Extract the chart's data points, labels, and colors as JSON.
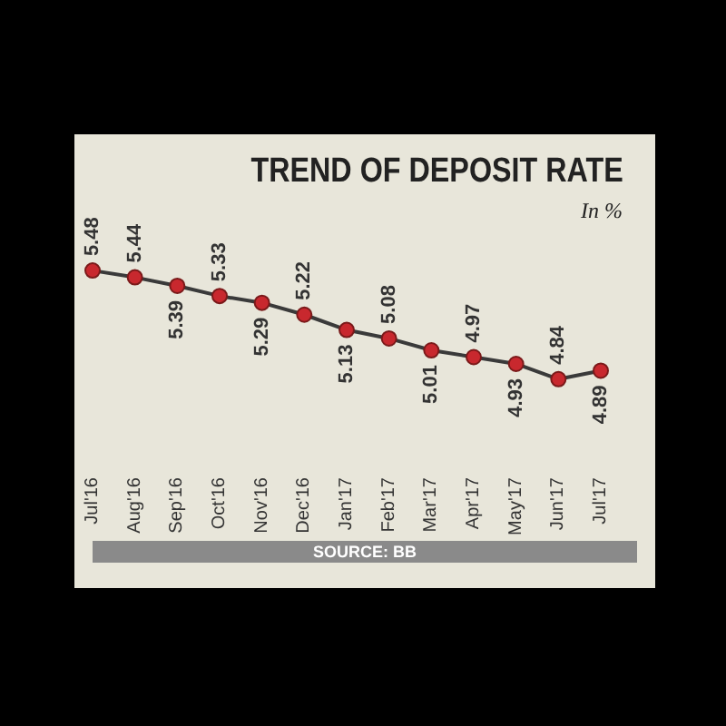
{
  "chart_data": {
    "type": "line",
    "title": "TREND OF DEPOSIT RATE",
    "subtitle": "In %",
    "categories": [
      "Jul'16",
      "Aug'16",
      "Sep'16",
      "Oct'16",
      "Nov'16",
      "Dec'16",
      "Jan'17",
      "Feb'17",
      "Mar'17",
      "Apr'17",
      "May'17",
      "Jun'17",
      "Jul'17"
    ],
    "series": [
      {
        "color": "#3a3a3a",
        "values": [
          5.48,
          5.44,
          5.39,
          5.33,
          5.29,
          5.22,
          5.13,
          5.08,
          5.01,
          4.97,
          4.93,
          4.84,
          4.89
        ]
      }
    ],
    "marker": "circle",
    "data_labels": true,
    "grid": false,
    "legend": false,
    "annotations": [
      "SOURCE: BB"
    ]
  }
}
